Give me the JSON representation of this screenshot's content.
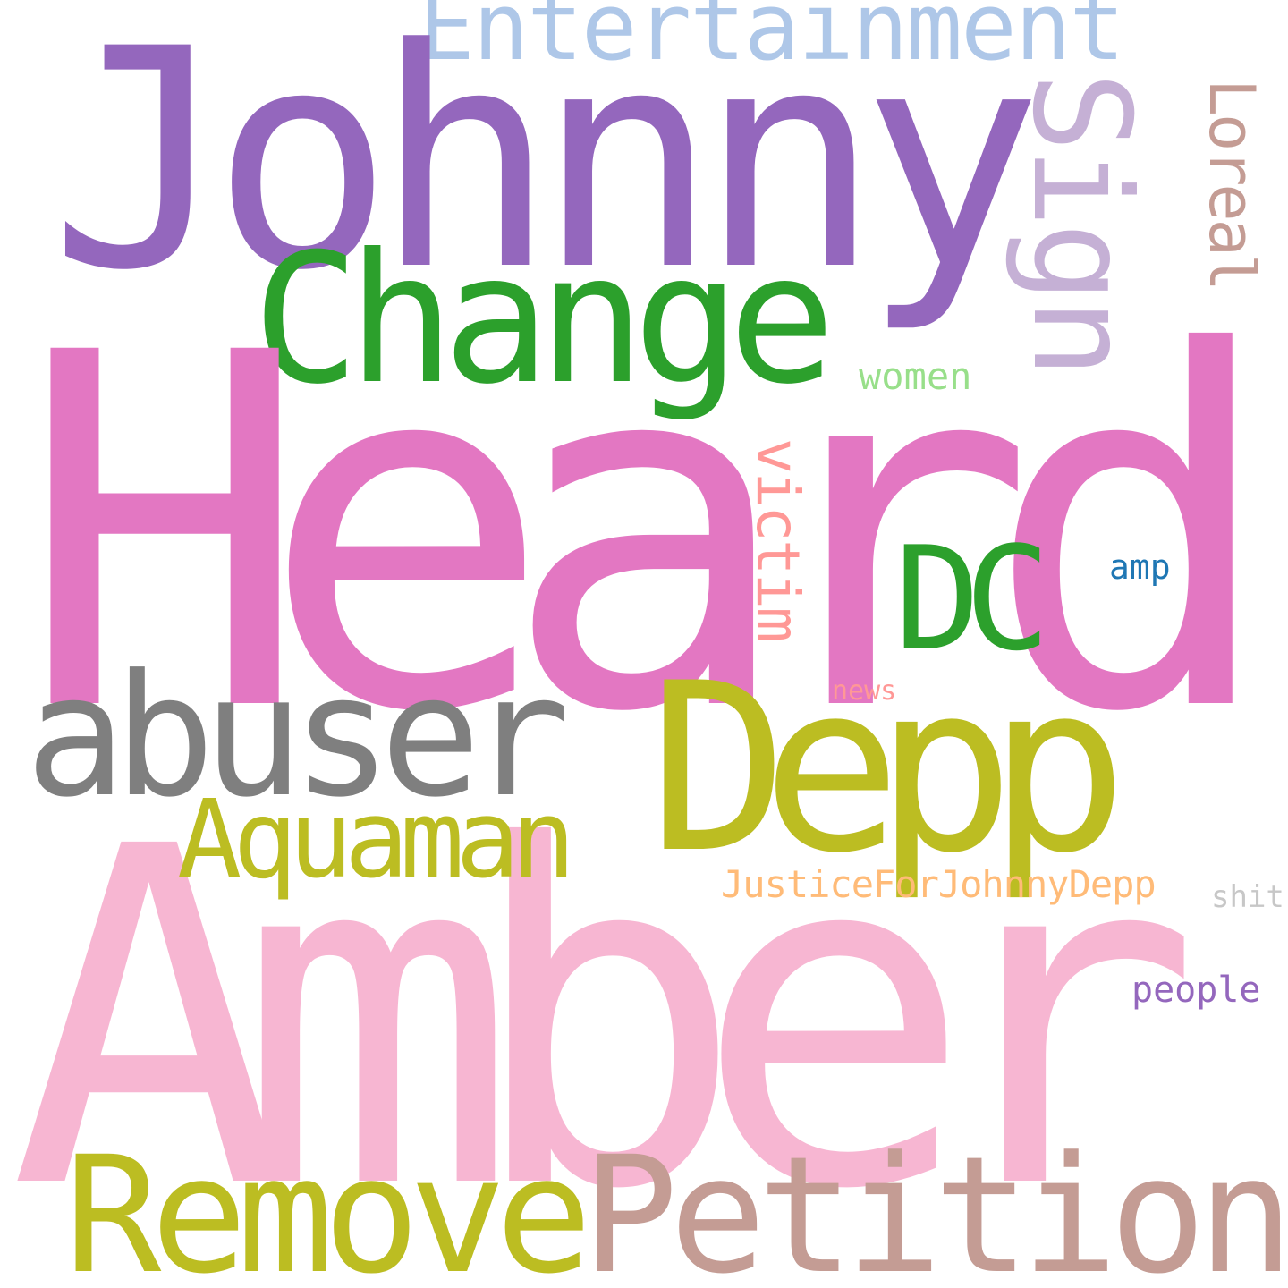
{
  "words": {
    "heard": {
      "text": "Heard",
      "color": "#e377c2"
    },
    "amber": {
      "text": "Amber",
      "color": "#f7b6d2"
    },
    "johnny": {
      "text": "Johnny",
      "color": "#9467bd"
    },
    "depp": {
      "text": "Depp",
      "color": "#bcbd22"
    },
    "change": {
      "text": "Change",
      "color": "#2ca02c"
    },
    "remove": {
      "text": "Remove",
      "color": "#bcbd22"
    },
    "petition": {
      "text": "Petition",
      "color": "#c49c94"
    },
    "abuser": {
      "text": "abuser",
      "color": "#7f7f7f"
    },
    "sign": {
      "text": "Sign",
      "color": "#c5b0d5"
    },
    "dc": {
      "text": "DC",
      "color": "#2ca02c"
    },
    "aquaman": {
      "text": "Aquaman",
      "color": "#bcbd22"
    },
    "entertainment": {
      "text": "Entertainment",
      "color": "#aec7e8"
    },
    "loreal": {
      "text": "Loreal",
      "color": "#c49c94"
    },
    "victim": {
      "text": "victim",
      "color": "#ff9896"
    },
    "justice": {
      "text": "JusticeForJohnnyDepp",
      "color": "#ffbb78"
    },
    "women": {
      "text": "women",
      "color": "#98df8a"
    },
    "people": {
      "text": "people",
      "color": "#9467bd"
    },
    "amp": {
      "text": "amp",
      "color": "#1f77b4"
    },
    "shit": {
      "text": "shit",
      "color": "#c7c7c7"
    },
    "news": {
      "text": "news",
      "color": "#ff9896"
    }
  }
}
